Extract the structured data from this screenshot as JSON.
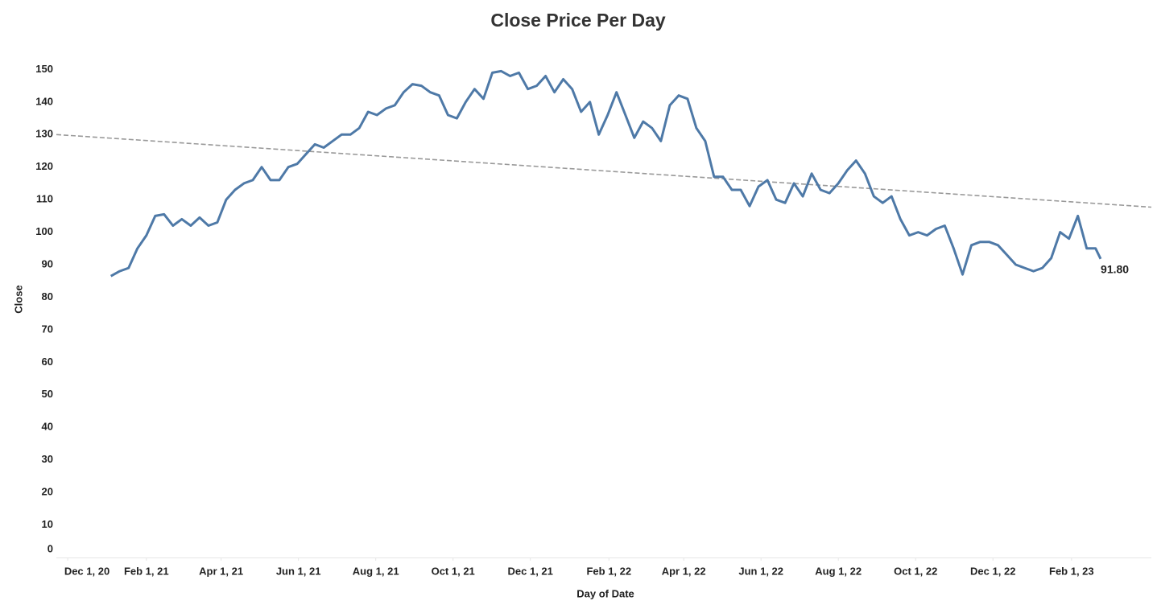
{
  "chart_data": {
    "type": "line",
    "title": "Close Price Per Day",
    "x_label": "Day of Date",
    "y_label": "Close",
    "x": [
      "2021-01-04",
      "2021-01-11",
      "2021-01-18",
      "2021-01-25",
      "2021-02-01",
      "2021-02-08",
      "2021-02-15",
      "2021-02-22",
      "2021-03-01",
      "2021-03-08",
      "2021-03-15",
      "2021-03-22",
      "2021-03-29",
      "2021-04-05",
      "2021-04-12",
      "2021-04-19",
      "2021-04-26",
      "2021-05-03",
      "2021-05-10",
      "2021-05-17",
      "2021-05-24",
      "2021-05-31",
      "2021-06-07",
      "2021-06-14",
      "2021-06-21",
      "2021-06-28",
      "2021-07-05",
      "2021-07-12",
      "2021-07-19",
      "2021-07-26",
      "2021-08-02",
      "2021-08-09",
      "2021-08-16",
      "2021-08-23",
      "2021-08-30",
      "2021-09-06",
      "2021-09-13",
      "2021-09-20",
      "2021-09-27",
      "2021-10-04",
      "2021-10-11",
      "2021-10-18",
      "2021-10-25",
      "2021-11-01",
      "2021-11-08",
      "2021-11-15",
      "2021-11-22",
      "2021-11-29",
      "2021-12-06",
      "2021-12-13",
      "2021-12-20",
      "2021-12-27",
      "2022-01-03",
      "2022-01-10",
      "2022-01-17",
      "2022-01-24",
      "2022-01-31",
      "2022-02-07",
      "2022-02-14",
      "2022-02-21",
      "2022-02-28",
      "2022-03-07",
      "2022-03-14",
      "2022-03-21",
      "2022-03-28",
      "2022-04-04",
      "2022-04-11",
      "2022-04-18",
      "2022-04-25",
      "2022-05-02",
      "2022-05-09",
      "2022-05-16",
      "2022-05-23",
      "2022-05-30",
      "2022-06-06",
      "2022-06-13",
      "2022-06-20",
      "2022-06-27",
      "2022-07-04",
      "2022-07-11",
      "2022-07-18",
      "2022-07-25",
      "2022-08-01",
      "2022-08-08",
      "2022-08-15",
      "2022-08-22",
      "2022-08-29",
      "2022-09-05",
      "2022-09-12",
      "2022-09-19",
      "2022-09-26",
      "2022-10-03",
      "2022-10-10",
      "2022-10-17",
      "2022-10-24",
      "2022-10-31",
      "2022-11-07",
      "2022-11-14",
      "2022-11-21",
      "2022-11-28",
      "2022-12-05",
      "2022-12-12",
      "2022-12-19",
      "2022-12-26",
      "2023-01-02",
      "2023-01-09",
      "2023-01-16",
      "2023-01-23",
      "2023-01-30",
      "2023-02-06",
      "2023-02-13",
      "2023-02-20",
      "2023-02-24"
    ],
    "series": [
      {
        "name": "Close",
        "color": "#4e79a7",
        "values": [
          86.5,
          88,
          89,
          95,
          99,
          105,
          105.5,
          102,
          104,
          102,
          104.5,
          102,
          103,
          110,
          113,
          115,
          116,
          120,
          116,
          116,
          120,
          121,
          124,
          127,
          126,
          128,
          130,
          130,
          132,
          137,
          136,
          138,
          139,
          143,
          145.5,
          145,
          143,
          142,
          136,
          135,
          140,
          144,
          141,
          149,
          149.5,
          148,
          149,
          144,
          145,
          148,
          143,
          147,
          144,
          137,
          140,
          130,
          136,
          143,
          136,
          129,
          134,
          132,
          128,
          139,
          142,
          141,
          132,
          128,
          117,
          117,
          113,
          113,
          108,
          114,
          116,
          110,
          109,
          115,
          111,
          118,
          113,
          112,
          115,
          119,
          122,
          118,
          111,
          109,
          111,
          104,
          99,
          100,
          99,
          101,
          102,
          95,
          87,
          96,
          97,
          97,
          96,
          93,
          90,
          89,
          88,
          89,
          92,
          100,
          98,
          105,
          95,
          95,
          91.8
        ]
      }
    ],
    "trendline": {
      "color": "#999999",
      "x": [
        "2020-11-22",
        "2023-04-05"
      ],
      "values": [
        130,
        107.7
      ]
    },
    "annotations": [
      {
        "x": "2023-02-24",
        "value": 91.8,
        "label": "91.80"
      }
    ],
    "xlim": [
      "2020-11-22",
      "2023-04-05"
    ],
    "xticks": [
      {
        "value": "2020-12-01",
        "label": "Dec 1, 20"
      },
      {
        "value": "2021-02-01",
        "label": "Feb 1, 21"
      },
      {
        "value": "2021-04-01",
        "label": "Apr 1, 21"
      },
      {
        "value": "2021-06-01",
        "label": "Jun 1, 21"
      },
      {
        "value": "2021-08-01",
        "label": "Aug 1, 21"
      },
      {
        "value": "2021-10-01",
        "label": "Oct 1, 21"
      },
      {
        "value": "2021-12-01",
        "label": "Dec 1, 21"
      },
      {
        "value": "2022-02-01",
        "label": "Feb 1, 22"
      },
      {
        "value": "2022-04-01",
        "label": "Apr 1, 22"
      },
      {
        "value": "2022-06-01",
        "label": "Jun 1, 22"
      },
      {
        "value": "2022-08-01",
        "label": "Aug 1, 22"
      },
      {
        "value": "2022-10-01",
        "label": "Oct 1, 22"
      },
      {
        "value": "2022-12-01",
        "label": "Dec 1, 22"
      },
      {
        "value": "2023-02-01",
        "label": "Feb 1, 23"
      }
    ],
    "ylim": [
      0,
      159
    ],
    "yticks": [
      0,
      10,
      20,
      30,
      40,
      50,
      60,
      70,
      80,
      90,
      100,
      110,
      120,
      130,
      140,
      150
    ],
    "grid": false
  }
}
